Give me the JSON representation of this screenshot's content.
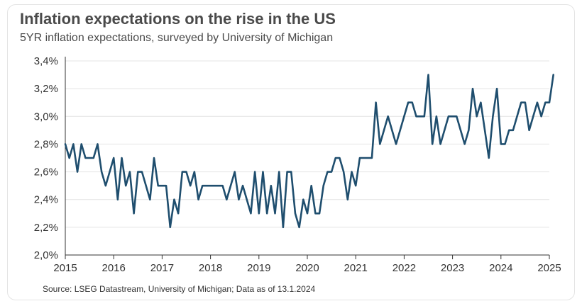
{
  "title": "Inflation expectations on the rise in the US",
  "subtitle": "5YR inflation expectations, surveyed by University of Michigan",
  "source": "Source: LSEG Datastream, University of Michigan; Data as of 13.1.2024",
  "colors": {
    "line": "#1f4e6e",
    "grid": "#e4e4e4",
    "axis": "#333333",
    "text": "#333333"
  },
  "chart_data": {
    "type": "line",
    "title": "Inflation expectations on the rise in the US",
    "subtitle": "5YR inflation expectations, surveyed by University of Michigan",
    "xlabel": "",
    "ylabel": "",
    "xlim": [
      2015,
      2025
    ],
    "ylim": [
      2.0,
      3.4
    ],
    "grid": true,
    "legend": "none",
    "x_ticks": [
      "2015",
      "2016",
      "2017",
      "2018",
      "2019",
      "2020",
      "2021",
      "2022",
      "2023",
      "2024",
      "2025"
    ],
    "y_ticks": [
      "2,0%",
      "2,2%",
      "2,4%",
      "2,6%",
      "2,8%",
      "3,0%",
      "3,2%",
      "3,4%"
    ],
    "series": [
      {
        "values": [
          2.8,
          2.7,
          2.8,
          2.6,
          2.8,
          2.7,
          2.7,
          2.7,
          2.8,
          2.6,
          2.5,
          2.6,
          2.7,
          2.4,
          2.7,
          2.5,
          2.6,
          2.3,
          2.6,
          2.6,
          2.5,
          2.4,
          2.7,
          2.5,
          2.5,
          2.5,
          2.2,
          2.4,
          2.3,
          2.6,
          2.6,
          2.5,
          2.6,
          2.4,
          2.5,
          2.5,
          2.5,
          2.5,
          2.5,
          2.5,
          2.4,
          2.5,
          2.6,
          2.4,
          2.5,
          2.4,
          2.3,
          2.6,
          2.3,
          2.6,
          2.3,
          2.5,
          2.3,
          2.6,
          2.2,
          2.6,
          2.6,
          2.3,
          2.2,
          2.4,
          2.3,
          2.5,
          2.3,
          2.3,
          2.5,
          2.6,
          2.6,
          2.7,
          2.7,
          2.6,
          2.4,
          2.6,
          2.5,
          2.7,
          2.7,
          2.7,
          2.7,
          3.1,
          2.8,
          2.9,
          3.0,
          2.9,
          2.8,
          2.9,
          3.0,
          3.1,
          3.1,
          3.0,
          3.0,
          3.0,
          3.3,
          2.8,
          3.0,
          2.8,
          2.9,
          3.0,
          3.0,
          3.0,
          2.9,
          2.8,
          2.9,
          3.2,
          3.0,
          3.1,
          2.9,
          2.7,
          3.0,
          3.2,
          2.8,
          2.8,
          2.9,
          2.9,
          3.0,
          3.1,
          3.1,
          2.9,
          3.0,
          3.1,
          3.0,
          3.1,
          3.1,
          3.3
        ]
      }
    ]
  }
}
